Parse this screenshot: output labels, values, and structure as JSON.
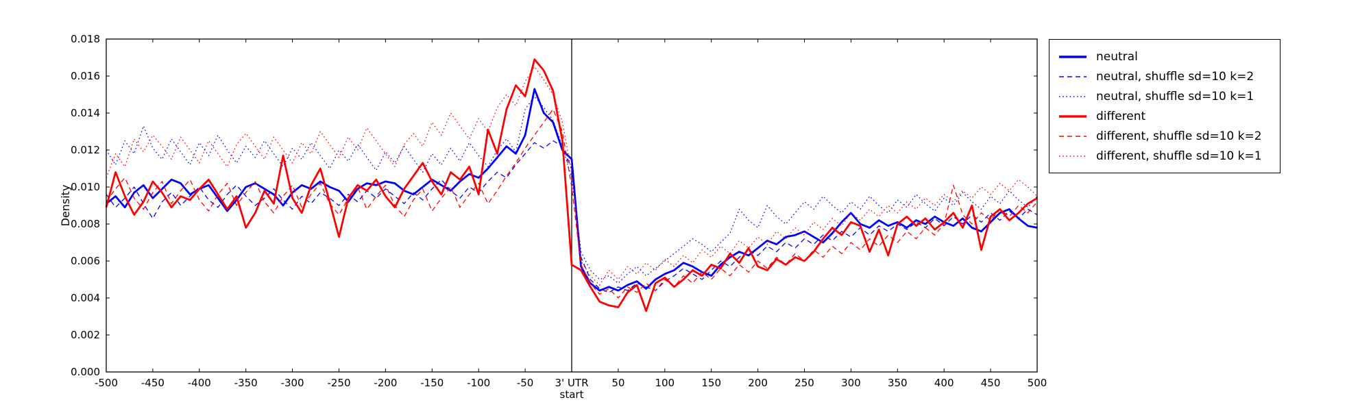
{
  "chart_data": {
    "type": "line",
    "title": "",
    "xlabel": "",
    "ylabel": "Density",
    "grid": false,
    "legend_position": "outside-right",
    "xlim": [
      -500,
      500
    ],
    "ylim": [
      0.0,
      0.018
    ],
    "vline_x": 0,
    "axis_color": "#000000",
    "x_ticks": [
      {
        "v": -500,
        "label": "-500"
      },
      {
        "v": -450,
        "label": "-450"
      },
      {
        "v": -400,
        "label": "-400"
      },
      {
        "v": -350,
        "label": "-350"
      },
      {
        "v": -300,
        "label": "-300"
      },
      {
        "v": -250,
        "label": "-250"
      },
      {
        "v": -200,
        "label": "-200"
      },
      {
        "v": -150,
        "label": "-150"
      },
      {
        "v": -100,
        "label": "-100"
      },
      {
        "v": -50,
        "label": "-50"
      },
      {
        "v": 0,
        "label": "3' UTR",
        "label2": "start"
      },
      {
        "v": 50,
        "label": "50"
      },
      {
        "v": 100,
        "label": "100"
      },
      {
        "v": 150,
        "label": "150"
      },
      {
        "v": 200,
        "label": "200"
      },
      {
        "v": 250,
        "label": "250"
      },
      {
        "v": 300,
        "label": "300"
      },
      {
        "v": 350,
        "label": "350"
      },
      {
        "v": 400,
        "label": "400"
      },
      {
        "v": 450,
        "label": "450"
      },
      {
        "v": 500,
        "label": "500"
      }
    ],
    "y_ticks": [
      {
        "v": 0.0,
        "label": "0.000"
      },
      {
        "v": 0.002,
        "label": "0.002"
      },
      {
        "v": 0.004,
        "label": "0.004"
      },
      {
        "v": 0.006,
        "label": "0.006"
      },
      {
        "v": 0.008,
        "label": "0.008"
      },
      {
        "v": 0.01,
        "label": "0.010"
      },
      {
        "v": 0.012,
        "label": "0.012"
      },
      {
        "v": 0.014,
        "label": "0.014"
      },
      {
        "v": 0.016,
        "label": "0.016"
      },
      {
        "v": 0.018,
        "label": "0.018"
      }
    ],
    "x": [
      -500,
      -490,
      -480,
      -470,
      -460,
      -450,
      -440,
      -430,
      -420,
      -410,
      -400,
      -390,
      -380,
      -370,
      -360,
      -350,
      -340,
      -330,
      -320,
      -310,
      -300,
      -290,
      -280,
      -270,
      -260,
      -250,
      -240,
      -230,
      -220,
      -210,
      -200,
      -190,
      -180,
      -170,
      -160,
      -150,
      -140,
      -130,
      -120,
      -110,
      -100,
      -90,
      -80,
      -70,
      -60,
      -50,
      -40,
      -30,
      -20,
      -10,
      0,
      10,
      20,
      30,
      40,
      50,
      60,
      70,
      80,
      90,
      100,
      110,
      120,
      130,
      140,
      150,
      160,
      170,
      180,
      190,
      200,
      210,
      220,
      230,
      240,
      250,
      260,
      270,
      280,
      290,
      300,
      310,
      320,
      330,
      340,
      350,
      360,
      370,
      380,
      390,
      400,
      410,
      420,
      430,
      440,
      450,
      460,
      470,
      480,
      490,
      500
    ],
    "series": [
      {
        "name": "neutral",
        "color": "#0000ff",
        "style": "solid",
        "values": [
          0.0091,
          0.0095,
          0.0089,
          0.0097,
          0.0101,
          0.0094,
          0.0099,
          0.0104,
          0.0102,
          0.0096,
          0.0099,
          0.0101,
          0.0094,
          0.0087,
          0.0093,
          0.01,
          0.0102,
          0.0099,
          0.0096,
          0.009,
          0.0097,
          0.0101,
          0.0099,
          0.0103,
          0.01,
          0.0098,
          0.0092,
          0.0099,
          0.0102,
          0.0101,
          0.0103,
          0.0102,
          0.0098,
          0.0096,
          0.01,
          0.0104,
          0.0101,
          0.0098,
          0.0103,
          0.0107,
          0.0105,
          0.011,
          0.0116,
          0.0122,
          0.0118,
          0.0128,
          0.0153,
          0.014,
          0.0135,
          0.012,
          0.0115,
          0.0057,
          0.0048,
          0.0044,
          0.0046,
          0.0044,
          0.0047,
          0.0049,
          0.0045,
          0.005,
          0.0053,
          0.0055,
          0.0059,
          0.0057,
          0.0054,
          0.0052,
          0.0058,
          0.0062,
          0.0065,
          0.0063,
          0.0067,
          0.0071,
          0.0069,
          0.0073,
          0.0074,
          0.0076,
          0.0073,
          0.007,
          0.0075,
          0.0081,
          0.0086,
          0.008,
          0.0078,
          0.0082,
          0.0079,
          0.0081,
          0.0078,
          0.0082,
          0.008,
          0.0084,
          0.0081,
          0.0079,
          0.0083,
          0.0078,
          0.0076,
          0.0081,
          0.0086,
          0.0088,
          0.0083,
          0.0079,
          0.0078
        ]
      },
      {
        "name": "neutral, shuffle sd=10 k=2",
        "color": "#0000ff",
        "style": "dashed",
        "values": [
          0.0096,
          0.0089,
          0.0094,
          0.01,
          0.0091,
          0.0083,
          0.0092,
          0.0097,
          0.009,
          0.0095,
          0.01,
          0.0093,
          0.0089,
          0.0096,
          0.0101,
          0.0095,
          0.009,
          0.0094,
          0.0099,
          0.0093,
          0.0088,
          0.0095,
          0.0091,
          0.0097,
          0.0094,
          0.009,
          0.0096,
          0.0092,
          0.0098,
          0.0094,
          0.0099,
          0.0095,
          0.0091,
          0.0097,
          0.0093,
          0.0099,
          0.0104,
          0.0098,
          0.0094,
          0.01,
          0.0097,
          0.0103,
          0.0108,
          0.0105,
          0.0112,
          0.0118,
          0.0124,
          0.0121,
          0.0125,
          0.0122,
          0.011,
          0.0062,
          0.005,
          0.0045,
          0.0043,
          0.0046,
          0.0044,
          0.0048,
          0.0046,
          0.0044,
          0.0049,
          0.0052,
          0.0056,
          0.0053,
          0.005,
          0.0055,
          0.006,
          0.0057,
          0.0062,
          0.0066,
          0.0063,
          0.0068,
          0.0065,
          0.007,
          0.0067,
          0.0072,
          0.0069,
          0.0074,
          0.0071,
          0.0076,
          0.0073,
          0.0078,
          0.0074,
          0.0079,
          0.0076,
          0.008,
          0.0077,
          0.0081,
          0.0078,
          0.0083,
          0.0079,
          0.0084,
          0.008,
          0.0085,
          0.0081,
          0.0086,
          0.0082,
          0.0087,
          0.0083,
          0.0088,
          0.0085
        ]
      },
      {
        "name": "neutral, shuffle sd=10 k=1",
        "color": "#0000ff",
        "style": "dotted",
        "values": [
          0.012,
          0.0112,
          0.0125,
          0.0118,
          0.0133,
          0.0121,
          0.0115,
          0.0126,
          0.0119,
          0.0112,
          0.0124,
          0.0117,
          0.0128,
          0.012,
          0.0113,
          0.0122,
          0.0116,
          0.0125,
          0.0118,
          0.0111,
          0.0121,
          0.0115,
          0.0124,
          0.0117,
          0.011,
          0.012,
          0.0114,
          0.0123,
          0.0116,
          0.0109,
          0.0119,
          0.0113,
          0.0122,
          0.0115,
          0.0108,
          0.0118,
          0.0112,
          0.0121,
          0.0114,
          0.0124,
          0.0117,
          0.0111,
          0.012,
          0.0126,
          0.0119,
          0.0142,
          0.0149,
          0.0143,
          0.0136,
          0.0122,
          0.0105,
          0.0065,
          0.0055,
          0.005,
          0.0052,
          0.0048,
          0.0053,
          0.0057,
          0.0052,
          0.0056,
          0.006,
          0.0064,
          0.0068,
          0.0072,
          0.0069,
          0.0065,
          0.007,
          0.0075,
          0.0088,
          0.0082,
          0.0078,
          0.009,
          0.0084,
          0.008,
          0.0086,
          0.0092,
          0.0088,
          0.0095,
          0.009,
          0.0086,
          0.0092,
          0.0088,
          0.0095,
          0.009,
          0.0086,
          0.0093,
          0.0089,
          0.0096,
          0.0091,
          0.0087,
          0.0094,
          0.009,
          0.0097,
          0.0092,
          0.0088,
          0.0095,
          0.0091,
          0.0098,
          0.0093,
          0.0089,
          0.0095
        ]
      },
      {
        "name": "different",
        "color": "#ff0000",
        "style": "solid",
        "values": [
          0.0089,
          0.0108,
          0.0095,
          0.0085,
          0.0092,
          0.0103,
          0.0097,
          0.0089,
          0.0095,
          0.0093,
          0.0099,
          0.0104,
          0.0096,
          0.0088,
          0.0095,
          0.0078,
          0.0086,
          0.0098,
          0.0091,
          0.0117,
          0.0094,
          0.0086,
          0.0101,
          0.011,
          0.0092,
          0.0073,
          0.0094,
          0.0101,
          0.0098,
          0.0104,
          0.0095,
          0.0089,
          0.0099,
          0.0106,
          0.0113,
          0.0103,
          0.0096,
          0.0108,
          0.0104,
          0.0111,
          0.0096,
          0.0131,
          0.0118,
          0.0142,
          0.0155,
          0.0149,
          0.0169,
          0.0163,
          0.0152,
          0.0125,
          0.0058,
          0.0055,
          0.0046,
          0.0038,
          0.0036,
          0.0035,
          0.0043,
          0.0047,
          0.0033,
          0.0048,
          0.0051,
          0.0046,
          0.005,
          0.0055,
          0.0052,
          0.0058,
          0.0056,
          0.0064,
          0.0059,
          0.0067,
          0.0057,
          0.0055,
          0.0061,
          0.0058,
          0.0062,
          0.006,
          0.0065,
          0.0072,
          0.0078,
          0.0074,
          0.0081,
          0.0079,
          0.0065,
          0.0077,
          0.0063,
          0.008,
          0.0084,
          0.0079,
          0.0083,
          0.0077,
          0.0081,
          0.0086,
          0.0078,
          0.009,
          0.0066,
          0.0084,
          0.0088,
          0.0082,
          0.0086,
          0.0091,
          0.0094
        ]
      },
      {
        "name": "different, shuffle sd=10 k=2",
        "color": "#ff0000",
        "style": "dashed",
        "values": [
          0.0092,
          0.0099,
          0.0105,
          0.0094,
          0.0088,
          0.0097,
          0.0103,
          0.0091,
          0.0098,
          0.0104,
          0.0093,
          0.0087,
          0.0096,
          0.0102,
          0.009,
          0.0097,
          0.0103,
          0.0092,
          0.0086,
          0.0095,
          0.0101,
          0.0089,
          0.0096,
          0.0102,
          0.0091,
          0.0085,
          0.0094,
          0.01,
          0.0088,
          0.0095,
          0.0101,
          0.009,
          0.0084,
          0.0093,
          0.0099,
          0.0087,
          0.0094,
          0.01,
          0.0089,
          0.0096,
          0.0102,
          0.0091,
          0.0098,
          0.0106,
          0.0113,
          0.0121,
          0.0128,
          0.0135,
          0.0142,
          0.013,
          0.01,
          0.0058,
          0.0048,
          0.0042,
          0.0045,
          0.004,
          0.0046,
          0.0043,
          0.0048,
          0.0044,
          0.005,
          0.0046,
          0.0052,
          0.0048,
          0.0054,
          0.005,
          0.0056,
          0.0052,
          0.0058,
          0.0054,
          0.006,
          0.0056,
          0.0062,
          0.0058,
          0.0064,
          0.006,
          0.0066,
          0.0062,
          0.0068,
          0.0064,
          0.007,
          0.0066,
          0.0072,
          0.0068,
          0.0074,
          0.007,
          0.0076,
          0.0072,
          0.0078,
          0.0074,
          0.008,
          0.0101,
          0.0085,
          0.008,
          0.0086,
          0.0082,
          0.0088,
          0.0084,
          0.009,
          0.0086,
          0.0092
        ]
      },
      {
        "name": "different, shuffle sd=10 k=1",
        "color": "#ff0000",
        "style": "dotted",
        "values": [
          0.0105,
          0.0118,
          0.0111,
          0.0126,
          0.0119,
          0.0128,
          0.0122,
          0.0115,
          0.0127,
          0.012,
          0.0113,
          0.0125,
          0.0118,
          0.0111,
          0.0123,
          0.0129,
          0.0122,
          0.0115,
          0.0127,
          0.012,
          0.0113,
          0.0124,
          0.0118,
          0.013,
          0.0123,
          0.0116,
          0.0127,
          0.012,
          0.0132,
          0.0125,
          0.0118,
          0.0111,
          0.0123,
          0.0129,
          0.0122,
          0.0135,
          0.0128,
          0.014,
          0.0133,
          0.0126,
          0.0137,
          0.013,
          0.0143,
          0.015,
          0.0144,
          0.0157,
          0.0165,
          0.0158,
          0.015,
          0.0135,
          0.0108,
          0.006,
          0.0052,
          0.0047,
          0.0055,
          0.005,
          0.0057,
          0.0053,
          0.0059,
          0.0055,
          0.0061,
          0.0057,
          0.0063,
          0.0059,
          0.0066,
          0.0062,
          0.0068,
          0.0064,
          0.0071,
          0.0067,
          0.0073,
          0.0069,
          0.0076,
          0.0072,
          0.0078,
          0.0074,
          0.0081,
          0.0077,
          0.0083,
          0.0079,
          0.0086,
          0.0082,
          0.0088,
          0.0084,
          0.009,
          0.0086,
          0.0092,
          0.0088,
          0.0094,
          0.009,
          0.0096,
          0.0092,
          0.0098,
          0.0094,
          0.01,
          0.0096,
          0.0102,
          0.0098,
          0.0104,
          0.01,
          0.0095
        ]
      }
    ]
  }
}
